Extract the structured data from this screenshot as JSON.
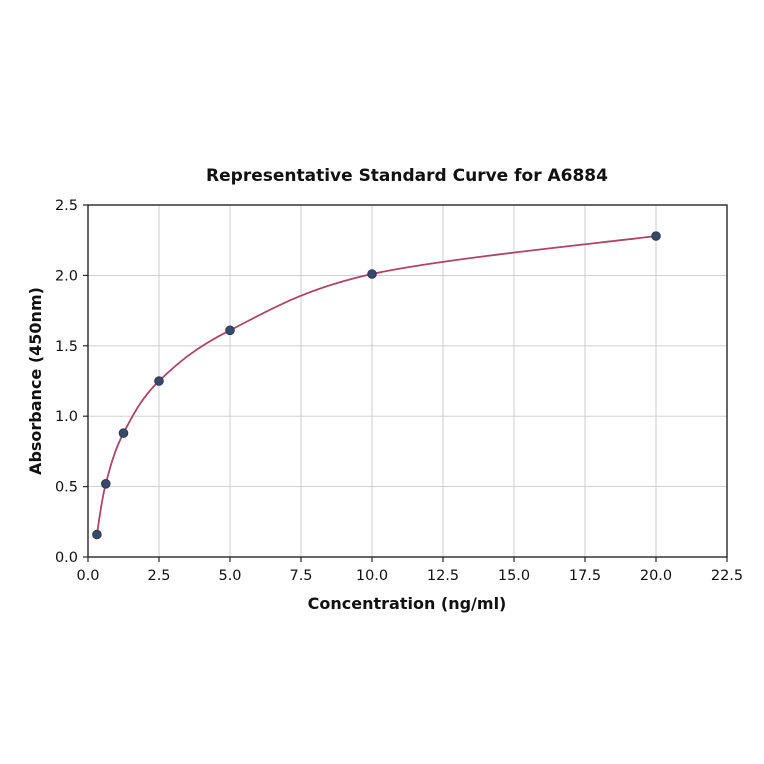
{
  "page": {
    "background": "#ffffff"
  },
  "chart_data": {
    "type": "scatter",
    "title": "Representative Standard Curve for A6884",
    "xlabel": "Concentration (ng/ml)",
    "ylabel": "Absorbance (450nm)",
    "xlim": [
      0,
      22.5
    ],
    "ylim": [
      0,
      2.5
    ],
    "grid": true,
    "legend": "none",
    "x_ticks": [
      0.0,
      2.5,
      5.0,
      7.5,
      10.0,
      12.5,
      15.0,
      17.5,
      20.0,
      22.5
    ],
    "x_tick_labels": [
      "0.0",
      "2.5",
      "5.0",
      "7.5",
      "10.0",
      "12.5",
      "15.0",
      "17.5",
      "20.0",
      "22.5"
    ],
    "y_ticks": [
      0.0,
      0.5,
      1.0,
      1.5,
      2.0,
      2.5
    ],
    "y_tick_labels": [
      "0.0",
      "0.5",
      "1.0",
      "1.5",
      "2.0",
      "2.5"
    ],
    "points": [
      {
        "x": 0.3125,
        "y": 0.16
      },
      {
        "x": 0.625,
        "y": 0.52
      },
      {
        "x": 1.25,
        "y": 0.88
      },
      {
        "x": 2.5,
        "y": 1.25
      },
      {
        "x": 5.0,
        "y": 1.61
      },
      {
        "x": 10.0,
        "y": 2.01
      },
      {
        "x": 20.0,
        "y": 2.28
      }
    ],
    "colors": {
      "curve": "#b04468",
      "point_fill": "#39496a",
      "point_edge": "#2b3a55",
      "grid": "#c9c9c9",
      "axis": "#262626"
    }
  }
}
